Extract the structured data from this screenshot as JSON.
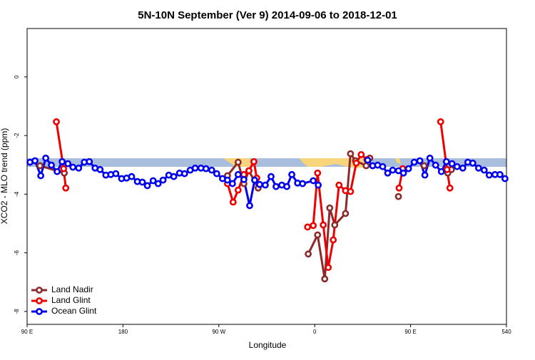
{
  "chart_data": {
    "type": "line",
    "title": "5N-10N September (Ver 9)   2014-09-06 to 2018-12-01",
    "xlabel": "Longitude",
    "ylabel": "XCO2 - MLO trend (ppm)",
    "xlim": [
      90,
      540
    ],
    "xticks": [
      {
        "value": 90,
        "label": "90 E"
      },
      180,
      {
        "value": 270,
        "label": "90 W"
      },
      {
        "value": 360,
        "label": "0"
      },
      {
        "value": 450,
        "label": "90 E"
      },
      540
    ],
    "ylim": [
      -8.44,
      1.65
    ],
    "yticks": [
      0,
      -2,
      -4,
      -6,
      -8
    ],
    "legend": "bottom-left",
    "series": [
      {
        "name": "Land Nadir",
        "color": "#8b2a2a",
        "x": [
          102.1,
          124.9,
          null,
          278.1,
          288.1,
          293.5,
          298.2,
          306.9,
          null,
          353.9,
          362.7,
          369.4,
          374.1,
          378.8,
          388.9,
          393.6,
          398.3,
          408.3,
          411.7,
          null,
          438.6,
          null,
          462.7,
          null,
          484.9,
          488.3
        ],
        "values": [
          -3.03,
          -3.28,
          null,
          -3.37,
          -2.91,
          -3.64,
          -3.2,
          -3.79,
          null,
          -6.04,
          -5.39,
          -6.89,
          -4.47,
          -5.05,
          -4.66,
          -2.62,
          -2.86,
          -3.03,
          -2.77,
          null,
          -4.08,
          null,
          -3.03,
          null,
          -3.28,
          -3.16
        ]
      },
      {
        "name": "Land Glint",
        "color": "#ee0000",
        "x": [
          117.5,
          124.3,
          126.3,
          null,
          278.1,
          283.4,
          288.1,
          293.5,
          298.2,
          302.9,
          305.6,
          null,
          353.3,
          358.6,
          362.7,
          368.0,
          372.7,
          377.4,
          382.8,
          388.9,
          393.6,
          399.0,
          403.6,
          409.0,
          null,
          439.2,
          442.6,
          null,
          478.2,
          484.2,
          486.9
        ],
        "values": [
          -1.53,
          -3.13,
          -3.79,
          null,
          -3.64,
          -4.27,
          -3.86,
          -3.33,
          -3.2,
          -2.89,
          -3.45,
          null,
          -5.12,
          -5.07,
          -3.28,
          -5.05,
          -6.5,
          -5.56,
          -3.69,
          -3.88,
          -3.91,
          -2.94,
          -2.65,
          -2.82,
          null,
          -3.79,
          -3.13,
          null,
          -1.53,
          -3.16,
          -3.79
        ]
      },
      {
        "name": "Ocean Glint",
        "color": "#0000ee",
        "x": [
          92.7,
          97.4,
          102.8,
          107.5,
          112.8,
          118.2,
          122.9,
          128.3,
          133.0,
          138.4,
          143.7,
          148.4,
          153.8,
          158.5,
          163.9,
          168.6,
          173.3,
          178.7,
          183.4,
          188.1,
          193.5,
          198.2,
          202.9,
          208.3,
          213.0,
          217.6,
          223.0,
          227.7,
          233.1,
          237.8,
          243.1,
          247.8,
          253.2,
          257.9,
          263.3,
          268.0,
          273.4,
          278.1,
          282.8,
          288.1,
          293.5,
          298.9,
          303.6,
          308.3,
          313.6,
          319.0,
          323.7,
          329.1,
          333.8,
          338.5,
          343.9,
          348.6,
          358.6,
          363.3,
          null,
          409.7,
          414.4,
          419.1,
          423.8,
          428.5,
          433.2,
          438.6,
          443.3,
          448.0,
          453.4,
          458.7,
          463.4,
          468.1,
          473.5,
          478.9,
          483.6,
          488.9,
          493.6,
          499.0,
          503.7,
          508.4,
          513.8,
          519.1,
          523.8,
          529.2,
          533.9,
          538.6
        ],
        "values": [
          -2.91,
          -2.86,
          -3.37,
          -2.77,
          -3.01,
          -3.23,
          -2.89,
          -2.96,
          -3.08,
          -3.11,
          -2.91,
          -2.89,
          -3.11,
          -3.16,
          -3.35,
          -3.33,
          -3.3,
          -3.47,
          -3.45,
          -3.4,
          -3.57,
          -3.59,
          -3.71,
          -3.54,
          -3.64,
          -3.52,
          -3.35,
          -3.4,
          -3.28,
          -3.3,
          -3.18,
          -3.11,
          -3.11,
          -3.13,
          -3.18,
          -3.3,
          -3.47,
          -3.52,
          -3.64,
          -3.33,
          -3.5,
          -4.39,
          -3.52,
          -3.67,
          -3.69,
          -3.4,
          -3.74,
          -3.69,
          -3.74,
          -3.33,
          -3.62,
          -3.64,
          -3.54,
          -3.69,
          null,
          -2.84,
          -3.03,
          -3.01,
          -3.06,
          -3.28,
          -3.18,
          -3.2,
          -3.28,
          -3.13,
          -2.91,
          -2.86,
          -3.35,
          -2.77,
          -3.01,
          -3.23,
          -2.89,
          -2.96,
          -3.06,
          -3.11,
          -2.91,
          -2.94,
          -3.11,
          -3.18,
          -3.35,
          -3.33,
          -3.33,
          -3.47
        ]
      }
    ]
  }
}
